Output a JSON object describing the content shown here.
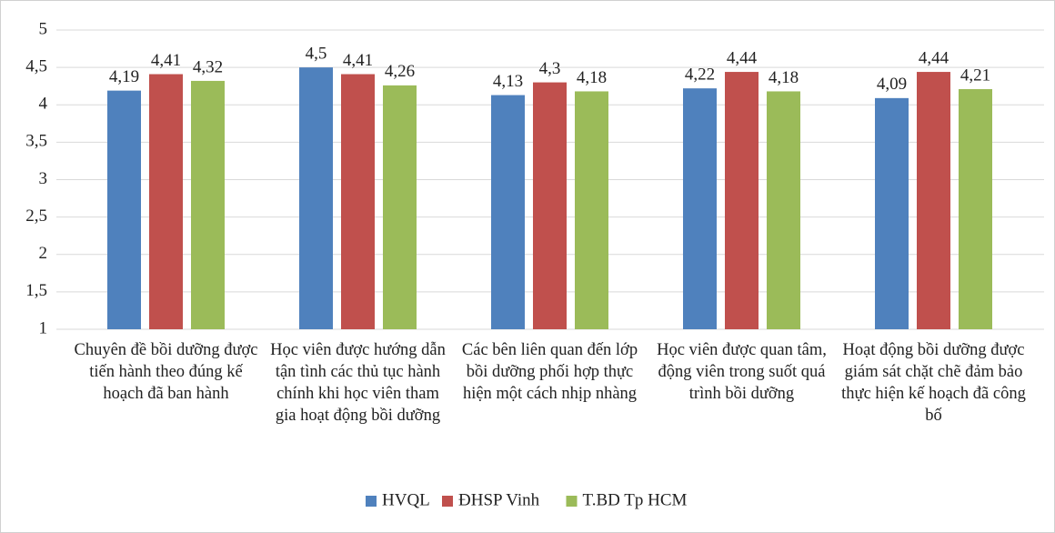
{
  "chart_data": {
    "type": "bar",
    "categories": [
      "Chuyên đề bồi dưỡng được tiến hành theo đúng kế hoạch đã ban hành",
      "Học viên được hướng dẫn tận tình các thủ tục hành chính khi học viên tham gia hoạt động bồi dưỡng",
      "Các bên liên quan đến lớp bồi dưỡng phối hợp thực hiện một cách nhịp nhàng",
      "Học viên được quan tâm, động viên trong suốt quá trình bồi dưỡng",
      "Hoạt động bồi dưỡng được giám sát chặt chẽ đảm bảo thực hiện kế hoạch đã công bố"
    ],
    "series": [
      {
        "name": "HVQL",
        "color": "#4f81bd",
        "values": [
          4.19,
          4.5,
          4.13,
          4.22,
          4.09
        ],
        "value_labels": [
          "4,19",
          "4,5",
          "4,13",
          "4,22",
          "4,09"
        ]
      },
      {
        "name": "ĐHSP Vinh",
        "color": "#c0504d",
        "values": [
          4.41,
          4.41,
          4.3,
          4.44,
          4.44
        ],
        "value_labels": [
          "4,41",
          "4,41",
          "4,3",
          "4,44",
          "4,44"
        ]
      },
      {
        "name": "T.BD Tp HCM",
        "color": "#9bbb59",
        "values": [
          4.32,
          4.26,
          4.18,
          4.18,
          4.21
        ],
        "value_labels": [
          "4,32",
          "4,26",
          "4,18",
          "4,18",
          "4,21"
        ]
      }
    ],
    "ylim": [
      1,
      5
    ],
    "yticks": [
      1,
      {
        "value": 1.5,
        "label": "1,5"
      },
      2,
      {
        "value": 2.5,
        "label": "2,5"
      },
      3,
      {
        "value": 3.5,
        "label": "3,5"
      },
      4,
      {
        "value": 4.5,
        "label": "4,5"
      },
      5
    ],
    "grid": true,
    "legend": "bottom"
  }
}
